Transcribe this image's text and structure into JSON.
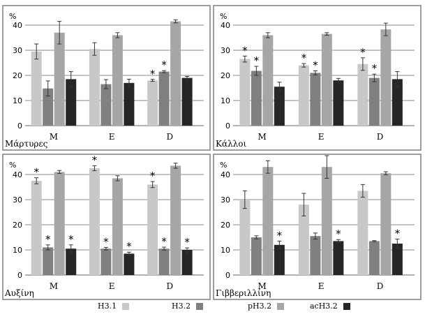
{
  "chart_data": [
    {
      "type": "bar",
      "title": "Μάρτυρες",
      "ylabel": "%",
      "ylim": [
        0,
        45
      ],
      "yticks": [
        0,
        10,
        20,
        30,
        40
      ],
      "grid": true,
      "categories": [
        "M",
        "E",
        "D"
      ],
      "series": [
        {
          "name": "H3.1",
          "values": [
            29.5,
            30.5,
            18.0
          ],
          "errors": [
            3.0,
            2.5,
            0.4
          ],
          "stars": [
            false,
            false,
            true
          ]
        },
        {
          "name": "H3.2",
          "values": [
            14.8,
            16.5,
            21.5
          ],
          "errors": [
            3.0,
            1.8,
            0.4
          ],
          "stars": [
            false,
            false,
            true
          ]
        },
        {
          "name": "pH3.2",
          "values": [
            37.0,
            36.0,
            41.5
          ],
          "errors": [
            4.5,
            1.0,
            0.6
          ],
          "stars": [
            false,
            false,
            false
          ]
        },
        {
          "name": "acH3.2",
          "values": [
            18.5,
            17.0,
            19.0
          ],
          "errors": [
            3.0,
            1.5,
            0.6
          ],
          "stars": [
            false,
            false,
            false
          ]
        }
      ]
    },
    {
      "type": "bar",
      "title": "Κάλλοι",
      "ylabel": "%",
      "ylim": [
        0,
        45
      ],
      "yticks": [
        0,
        10,
        20,
        30,
        40
      ],
      "grid": true,
      "categories": [
        "M",
        "E",
        "D"
      ],
      "series": [
        {
          "name": "H3.1",
          "values": [
            26.5,
            24.0,
            24.5
          ],
          "errors": [
            1.2,
            0.7,
            2.5
          ],
          "stars": [
            true,
            true,
            true
          ]
        },
        {
          "name": "H3.2",
          "values": [
            21.8,
            21.0,
            19.0
          ],
          "errors": [
            1.8,
            0.8,
            1.5
          ],
          "stars": [
            true,
            true,
            true
          ]
        },
        {
          "name": "pH3.2",
          "values": [
            36.0,
            36.5,
            38.3
          ],
          "errors": [
            1.0,
            0.5,
            2.5
          ],
          "stars": [
            false,
            false,
            false
          ]
        },
        {
          "name": "acH3.2",
          "values": [
            15.5,
            18.0,
            18.5
          ],
          "errors": [
            1.8,
            0.8,
            3.0
          ],
          "stars": [
            false,
            false,
            false
          ]
        }
      ]
    },
    {
      "type": "bar",
      "title": "Αυξίνη",
      "ylabel": "%",
      "ylim": [
        0,
        45
      ],
      "yticks": [
        0,
        10,
        20,
        30,
        40
      ],
      "grid": true,
      "categories": [
        "M",
        "E",
        "D"
      ],
      "series": [
        {
          "name": "H3.1",
          "values": [
            37.5,
            42.5,
            36.0
          ],
          "errors": [
            1.2,
            1.0,
            1.2
          ],
          "stars": [
            true,
            true,
            true
          ]
        },
        {
          "name": "H3.2",
          "values": [
            11.0,
            10.5,
            10.5
          ],
          "errors": [
            1.0,
            0.5,
            0.6
          ],
          "stars": [
            true,
            true,
            true
          ]
        },
        {
          "name": "pH3.2",
          "values": [
            41.0,
            38.5,
            43.5
          ],
          "errors": [
            0.6,
            1.0,
            1.0
          ],
          "stars": [
            false,
            false,
            false
          ]
        },
        {
          "name": "acH3.2",
          "values": [
            10.5,
            8.5,
            10.0
          ],
          "errors": [
            1.5,
            0.6,
            0.8
          ],
          "stars": [
            true,
            true,
            true
          ]
        }
      ]
    },
    {
      "type": "bar",
      "title": "Γιββεριλλίνη",
      "ylabel": "%",
      "ylim": [
        0,
        45
      ],
      "yticks": [
        0,
        10,
        20,
        30,
        40
      ],
      "grid": true,
      "categories": [
        "M",
        "E",
        "D"
      ],
      "series": [
        {
          "name": "H3.1",
          "values": [
            30.0,
            28.0,
            33.5
          ],
          "errors": [
            3.5,
            4.5,
            2.5
          ],
          "stars": [
            false,
            false,
            false
          ]
        },
        {
          "name": "H3.2",
          "values": [
            15.0,
            15.5,
            13.5
          ],
          "errors": [
            0.6,
            1.2,
            0.2
          ],
          "stars": [
            false,
            false,
            false
          ]
        },
        {
          "name": "pH3.2",
          "values": [
            43.0,
            43.0,
            40.5
          ],
          "errors": [
            2.5,
            4.5,
            0.6
          ],
          "stars": [
            false,
            false,
            false
          ]
        },
        {
          "name": "acH3.2",
          "values": [
            12.0,
            13.5,
            12.5
          ],
          "errors": [
            1.5,
            0.6,
            1.8
          ],
          "stars": [
            true,
            true,
            true
          ]
        }
      ]
    }
  ],
  "colors": {
    "H3.1": "#c8c8c8",
    "H3.2": "#808080",
    "pH3.2": "#a6a6a6",
    "acH3.2": "#262626",
    "grid": "#8a8a8a",
    "panel_border": "#7f7f7f"
  },
  "legend": [
    {
      "label": "H3.1",
      "color_key": "H3.1"
    },
    {
      "label": "H3.2",
      "color_key": "H3.2"
    },
    {
      "label": "pH3.2",
      "color_key": "pH3.2"
    },
    {
      "label": "acH3.2",
      "color_key": "acH3.2"
    }
  ]
}
